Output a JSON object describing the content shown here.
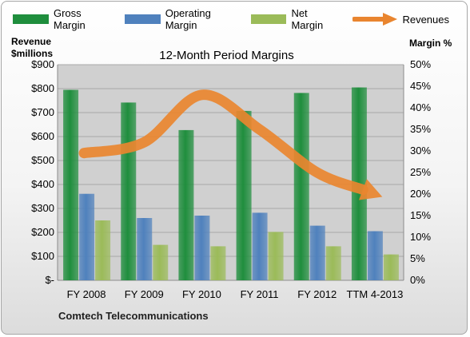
{
  "legend": {
    "gross": "Gross Margin",
    "operating": "Operating Margin",
    "net": "Net Margin",
    "revenues": "Revenues"
  },
  "left_axis_title": [
    "Revenue",
    "$millions"
  ],
  "right_axis_title": "Margin %",
  "footer": "Comtech Telecommunications",
  "colors": {
    "gross": "#1f8e3d",
    "operating": "#4f81bd",
    "net": "#9bbb59",
    "revenues": "#e9852f",
    "plot_bg": "#d0d0d0",
    "gridline": "#a9a9a9"
  },
  "chart_data": {
    "type": "bar",
    "title": "12-Month Period Margins",
    "categories": [
      "FY 2008",
      "FY 2009",
      "FY 2010",
      "FY 2011",
      "FY 2012",
      "TTM 4-2013"
    ],
    "series": [
      {
        "name": "Gross Margin",
        "values": [
          795,
          742,
          627,
          707,
          782,
          805
        ]
      },
      {
        "name": "Operating Margin",
        "values": [
          361,
          260,
          270,
          282,
          228,
          205
        ]
      },
      {
        "name": "Net Margin",
        "values": [
          250,
          148,
          142,
          202,
          142,
          108
        ]
      }
    ],
    "line_series": {
      "name": "Revenues",
      "values_pct": [
        29.5,
        32,
        43,
        35,
        25,
        20
      ]
    },
    "ylim": [
      0,
      900
    ],
    "y2lim": [
      0,
      50
    ],
    "yticks": [
      "$-",
      "$100",
      "$200",
      "$300",
      "$400",
      "$500",
      "$600",
      "$700",
      "$800",
      "$900"
    ],
    "y2ticks": [
      "0%",
      "5%",
      "10%",
      "15%",
      "20%",
      "25%",
      "30%",
      "35%",
      "40%",
      "45%",
      "50%"
    ],
    "grid": true,
    "legend_position": "top"
  }
}
